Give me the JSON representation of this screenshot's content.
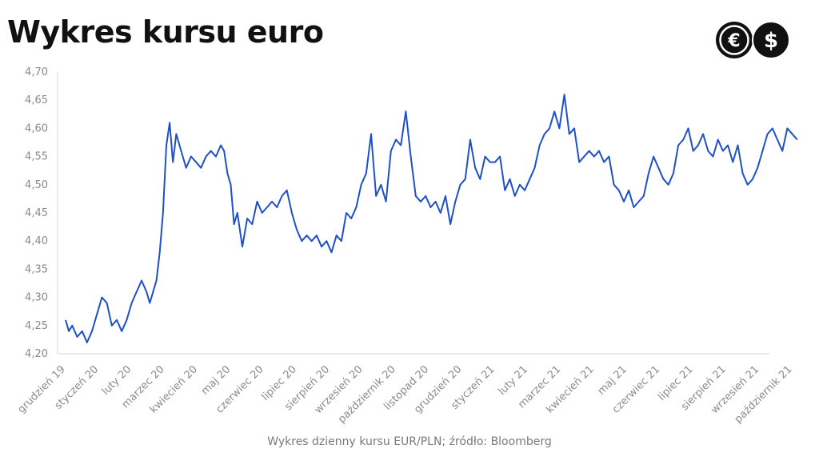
{
  "title": "Wykres kursu euro",
  "caption": "Wykres dzienny kursu EUR/PLN; źródło: Bloomberg",
  "logo": {
    "icons": [
      "euro-icon",
      "dollar-icon"
    ],
    "euro_symbol": "€",
    "dollar_symbol": "$",
    "color": "#111111"
  },
  "chart_data": {
    "type": "line",
    "title": "Wykres kursu euro",
    "xlabel": "",
    "ylabel": "",
    "ylim": [
      4.2,
      4.7
    ],
    "grid": false,
    "legend": "none",
    "y_ticks": [
      "4,20",
      "4,25",
      "4,30",
      "4,35",
      "4,40",
      "4,45",
      "4,50",
      "4,55",
      "4,60",
      "4,65",
      "4,70"
    ],
    "x_ticks": [
      "grudzień 19",
      "styczeń 20",
      "luty 20",
      "marzec 20",
      "kwiecień 20",
      "maj 20",
      "czerwiec 20",
      "lipiec 20",
      "sierpień 20",
      "wrzesień 20",
      "październik 20",
      "listopad 20",
      "grudzień 20",
      "styczeń 21",
      "luty 21",
      "marzec 21",
      "kwiecień 21",
      "maj 21",
      "czerwiec 21",
      "lipiec 21",
      "sierpień 21",
      "wrzesień 21",
      "październik 21"
    ],
    "color": "#1f4fc9",
    "series": [
      {
        "x": [
          0.0,
          0.1,
          0.2,
          0.35,
          0.5,
          0.65,
          0.8,
          0.95,
          1.1,
          1.25,
          1.4,
          1.55,
          1.7,
          1.85,
          2.0,
          2.15,
          2.3,
          2.45,
          2.55,
          2.65,
          2.75,
          2.85,
          2.95,
          3.05,
          3.15,
          3.25,
          3.35,
          3.5,
          3.65,
          3.8,
          3.95,
          4.1,
          4.25,
          4.4,
          4.55,
          4.7,
          4.8,
          4.9,
          5.0,
          5.1,
          5.2,
          5.35,
          5.5,
          5.65,
          5.8,
          5.95,
          6.1,
          6.25,
          6.4,
          6.55,
          6.7,
          6.85,
          7.0,
          7.15,
          7.3,
          7.45,
          7.6,
          7.75,
          7.9,
          8.05,
          8.2,
          8.35,
          8.5,
          8.65,
          8.8,
          8.95,
          9.1,
          9.25,
          9.4,
          9.55,
          9.7,
          9.85,
          10.0,
          10.15,
          10.3,
          10.45,
          10.6,
          10.75,
          10.9,
          11.05,
          11.2,
          11.35,
          11.5,
          11.65,
          11.8,
          11.95,
          12.1,
          12.25,
          12.4,
          12.55,
          12.7,
          12.85,
          13.0,
          13.15,
          13.3,
          13.45,
          13.6,
          13.75,
          13.9,
          14.05,
          14.2,
          14.35,
          14.5,
          14.65,
          14.8,
          14.95,
          15.1,
          15.25,
          15.4,
          15.55,
          15.7,
          15.85,
          16.0,
          16.15,
          16.3,
          16.45,
          16.6,
          16.75,
          16.9,
          17.05,
          17.2,
          17.35,
          17.5,
          17.65,
          17.8,
          17.95,
          18.1,
          18.25,
          18.4,
          18.55,
          18.7,
          18.85,
          19.0,
          19.15,
          19.3,
          19.45,
          19.6,
          19.75,
          19.9,
          20.05,
          20.2,
          20.35,
          20.5,
          20.65,
          20.8,
          20.95,
          21.1,
          21.25,
          21.4,
          21.55,
          21.7,
          21.85,
          22.0,
          22.15
        ],
        "values": [
          4.26,
          4.24,
          4.25,
          4.23,
          4.24,
          4.22,
          4.24,
          4.27,
          4.3,
          4.29,
          4.25,
          4.26,
          4.24,
          4.26,
          4.29,
          4.31,
          4.33,
          4.31,
          4.29,
          4.31,
          4.33,
          4.38,
          4.45,
          4.57,
          4.61,
          4.54,
          4.59,
          4.56,
          4.53,
          4.55,
          4.54,
          4.53,
          4.55,
          4.56,
          4.55,
          4.57,
          4.56,
          4.52,
          4.5,
          4.43,
          4.45,
          4.39,
          4.44,
          4.43,
          4.47,
          4.45,
          4.46,
          4.47,
          4.46,
          4.48,
          4.49,
          4.45,
          4.42,
          4.4,
          4.41,
          4.4,
          4.41,
          4.39,
          4.4,
          4.38,
          4.41,
          4.4,
          4.45,
          4.44,
          4.46,
          4.5,
          4.52,
          4.59,
          4.48,
          4.5,
          4.47,
          4.56,
          4.58,
          4.57,
          4.63,
          4.55,
          4.48,
          4.47,
          4.48,
          4.46,
          4.47,
          4.45,
          4.48,
          4.43,
          4.47,
          4.5,
          4.51,
          4.58,
          4.53,
          4.51,
          4.55,
          4.54,
          4.54,
          4.55,
          4.49,
          4.51,
          4.48,
          4.5,
          4.49,
          4.51,
          4.53,
          4.57,
          4.59,
          4.6,
          4.63,
          4.6,
          4.66,
          4.59,
          4.6,
          4.54,
          4.55,
          4.56,
          4.55,
          4.56,
          4.54,
          4.55,
          4.5,
          4.49,
          4.47,
          4.49,
          4.46,
          4.47,
          4.48,
          4.52,
          4.55,
          4.53,
          4.51,
          4.5,
          4.52,
          4.57,
          4.58,
          4.6,
          4.56,
          4.57,
          4.59,
          4.56,
          4.55,
          4.58,
          4.56,
          4.57,
          4.54,
          4.57,
          4.52,
          4.5,
          4.51,
          4.53,
          4.56,
          4.59,
          4.6,
          4.58,
          4.56,
          4.6,
          4.59,
          4.58
        ]
      }
    ]
  }
}
